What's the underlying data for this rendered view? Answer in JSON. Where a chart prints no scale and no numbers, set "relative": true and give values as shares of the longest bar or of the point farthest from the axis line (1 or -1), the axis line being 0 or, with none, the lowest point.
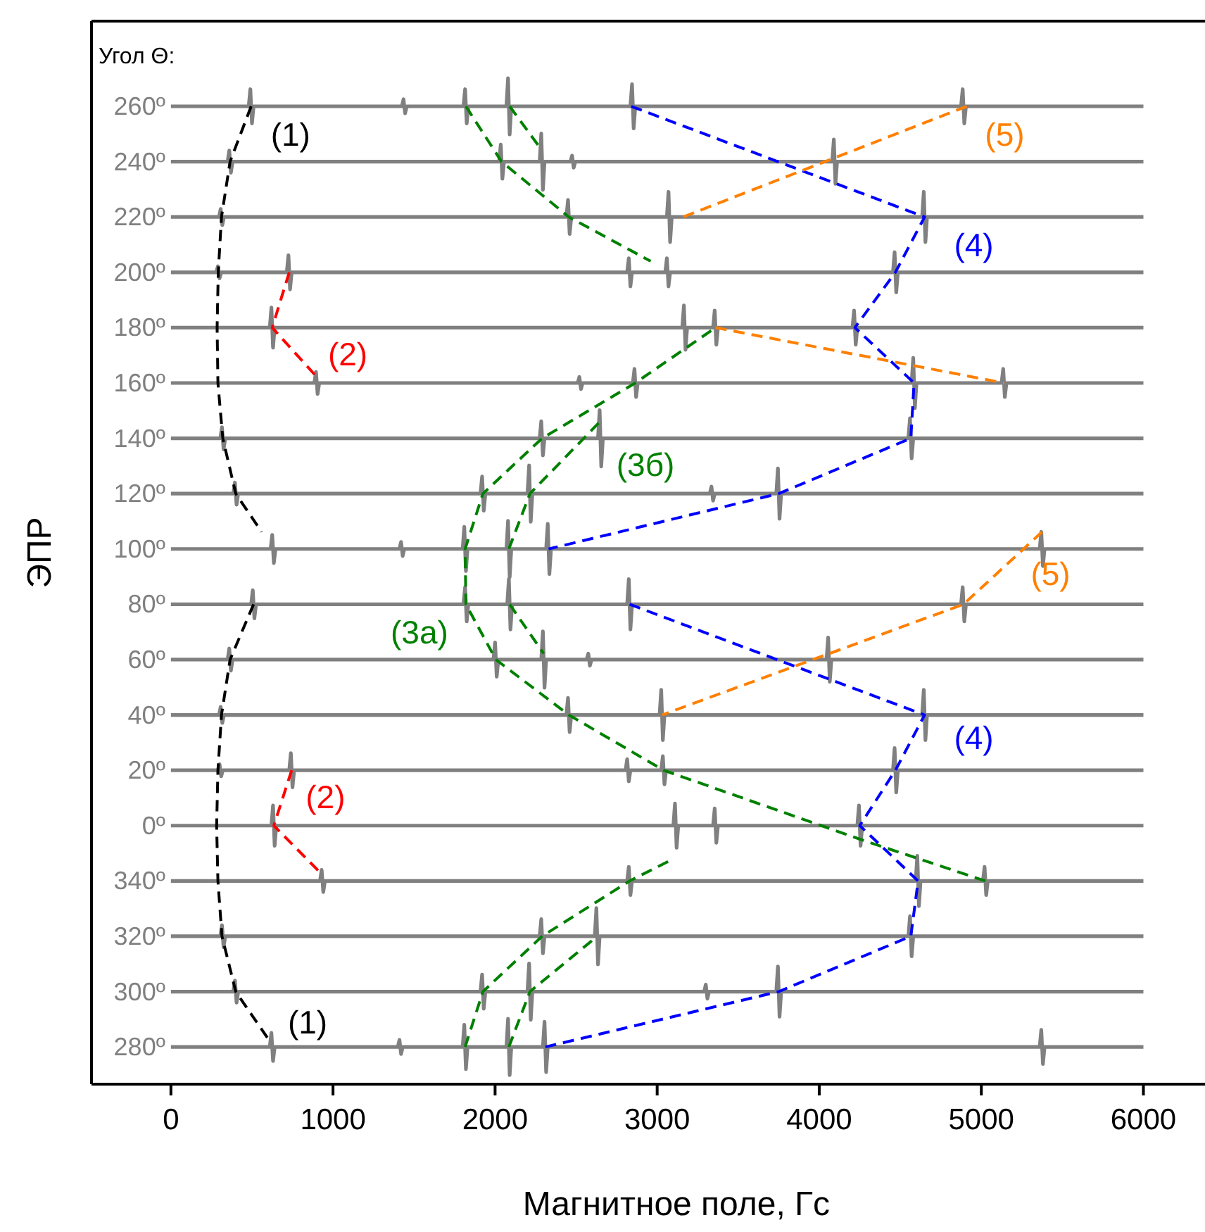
{
  "chart_data": {
    "type": "line",
    "xlabel": "Магнитное поле, Гс",
    "ylabel": "ЭПР",
    "xlim": [
      -490,
      6380
    ],
    "xticks": [
      0,
      1000,
      2000,
      3000,
      4000,
      5000,
      6000
    ],
    "relative": true,
    "line_style": "solid",
    "series": [
      {
        "name": "260º",
        "color": "#808080",
        "x": [
          0,
          480,
          490,
          500,
          510,
          1425,
          1435,
          1445,
          1455,
          1805,
          1815,
          1825,
          1835,
          2070,
          2080,
          2090,
          2100,
          2835,
          2845,
          2855,
          2865,
          4875,
          4885,
          4895,
          4905,
          6000
        ],
        "values": [
          0.972,
          0.972,
          0.989,
          0.955,
          0.972,
          0.972,
          0.979,
          0.965,
          0.972,
          0.972,
          0.989,
          0.955,
          0.972,
          0.972,
          1.0,
          0.944,
          0.972,
          0.972,
          0.994,
          0.95,
          0.972,
          0.972,
          0.989,
          0.955,
          0.972,
          0.972
        ]
      },
      {
        "name": "240º",
        "color": "#808080",
        "x": [
          0,
          350,
          360,
          370,
          380,
          2025,
          2035,
          2045,
          2055,
          2275,
          2285,
          2295,
          2305,
          2465,
          2475,
          2485,
          2495,
          4080,
          4090,
          4100,
          4110,
          6000
        ],
        "values": [
          0.917,
          0.917,
          0.928,
          0.906,
          0.917,
          0.917,
          0.934,
          0.9,
          0.917,
          0.917,
          0.945,
          0.889,
          0.917,
          0.917,
          0.923,
          0.911,
          0.917,
          0.917,
          0.939,
          0.895,
          0.917,
          0.917
        ]
      },
      {
        "name": "220º",
        "color": "#808080",
        "x": [
          0,
          297,
          307,
          317,
          327,
          2440,
          2450,
          2460,
          2470,
          3060,
          3070,
          3080,
          3090,
          4635,
          4645,
          4655,
          4665,
          6000
        ],
        "values": [
          0.862,
          0.862,
          0.87,
          0.854,
          0.862,
          0.862,
          0.879,
          0.845,
          0.862,
          0.862,
          0.887,
          0.837,
          0.862,
          0.862,
          0.887,
          0.837,
          0.862,
          0.862
        ]
      },
      {
        "name": "200º",
        "color": "#808080",
        "x": [
          0,
          280,
          290,
          300,
          310,
          715,
          725,
          735,
          745,
          2815,
          2825,
          2835,
          2845,
          3050,
          3060,
          3070,
          3080,
          4455,
          4465,
          4475,
          4485,
          6000
        ],
        "values": [
          0.807,
          0.807,
          0.813,
          0.801,
          0.807,
          0.807,
          0.824,
          0.79,
          0.807,
          0.807,
          0.821,
          0.793,
          0.807,
          0.807,
          0.821,
          0.793,
          0.807,
          0.807,
          0.827,
          0.787,
          0.807,
          0.807
        ]
      },
      {
        "name": "180º",
        "color": "#808080",
        "x": [
          0,
          610,
          620,
          630,
          640,
          3155,
          3165,
          3175,
          3185,
          3345,
          3355,
          3365,
          3375,
          4205,
          4215,
          4225,
          4235,
          6000
        ],
        "values": [
          0.752,
          0.752,
          0.772,
          0.732,
          0.752,
          0.752,
          0.774,
          0.73,
          0.752,
          0.752,
          0.769,
          0.735,
          0.752,
          0.752,
          0.769,
          0.735,
          0.752,
          0.752
        ]
      },
      {
        "name": "160º",
        "color": "#808080",
        "x": [
          0,
          885,
          895,
          905,
          915,
          2510,
          2520,
          2530,
          2540,
          2850,
          2860,
          2870,
          2880,
          4570,
          4580,
          4590,
          4600,
          5125,
          5135,
          5145,
          5155,
          6000
        ],
        "values": [
          0.697,
          0.697,
          0.708,
          0.686,
          0.697,
          0.697,
          0.703,
          0.691,
          0.697,
          0.697,
          0.711,
          0.683,
          0.697,
          0.697,
          0.722,
          0.672,
          0.697,
          0.697,
          0.711,
          0.683,
          0.697,
          0.697
        ]
      },
      {
        "name": "140º",
        "color": "#808080",
        "x": [
          0,
          305,
          315,
          325,
          335,
          2275,
          2285,
          2295,
          2305,
          2635,
          2645,
          2655,
          2665,
          4550,
          4560,
          4570,
          4580,
          6000
        ],
        "values": [
          0.642,
          0.642,
          0.653,
          0.631,
          0.642,
          0.642,
          0.659,
          0.625,
          0.642,
          0.642,
          0.67,
          0.614,
          0.642,
          0.642,
          0.662,
          0.622,
          0.642,
          0.642
        ]
      },
      {
        "name": "120º",
        "color": "#808080",
        "x": [
          0,
          385,
          395,
          405,
          415,
          1910,
          1920,
          1930,
          1940,
          2200,
          2210,
          2220,
          2230,
          3325,
          3335,
          3345,
          3355,
          3735,
          3745,
          3755,
          3765,
          6000
        ],
        "values": [
          0.587,
          0.587,
          0.598,
          0.576,
          0.587,
          0.587,
          0.604,
          0.57,
          0.587,
          0.587,
          0.615,
          0.559,
          0.587,
          0.587,
          0.594,
          0.58,
          0.587,
          0.587,
          0.612,
          0.562,
          0.587,
          0.587
        ]
      },
      {
        "name": "100º",
        "color": "#808080",
        "x": [
          0,
          615,
          625,
          635,
          645,
          1410,
          1420,
          1430,
          1440,
          1800,
          1810,
          1820,
          1830,
          2070,
          2080,
          2090,
          2100,
          2315,
          2325,
          2335,
          2345,
          5360,
          5370,
          5380,
          5390,
          6000
        ],
        "values": [
          0.532,
          0.532,
          0.546,
          0.518,
          0.532,
          0.532,
          0.539,
          0.525,
          0.532,
          0.532,
          0.554,
          0.51,
          0.532,
          0.532,
          0.56,
          0.504,
          0.532,
          0.532,
          0.557,
          0.507,
          0.532,
          0.532,
          0.549,
          0.515,
          0.532,
          0.532
        ]
      },
      {
        "name": "80º",
        "color": "#808080",
        "x": [
          0,
          495,
          505,
          515,
          525,
          1805,
          1815,
          1825,
          1835,
          2075,
          2085,
          2095,
          2105,
          2815,
          2825,
          2835,
          2845,
          4875,
          4885,
          4895,
          4905,
          6000
        ],
        "values": [
          0.477,
          0.477,
          0.491,
          0.463,
          0.477,
          0.477,
          0.494,
          0.46,
          0.477,
          0.477,
          0.502,
          0.452,
          0.477,
          0.477,
          0.502,
          0.452,
          0.477,
          0.477,
          0.494,
          0.46,
          0.477,
          0.477
        ]
      },
      {
        "name": "60º",
        "color": "#808080",
        "x": [
          0,
          350,
          360,
          370,
          380,
          1990,
          2000,
          2010,
          2020,
          2285,
          2295,
          2305,
          2315,
          2565,
          2575,
          2585,
          2595,
          4045,
          4055,
          4065,
          4075,
          6000
        ],
        "values": [
          0.422,
          0.422,
          0.433,
          0.411,
          0.422,
          0.422,
          0.439,
          0.405,
          0.422,
          0.422,
          0.45,
          0.394,
          0.422,
          0.422,
          0.428,
          0.416,
          0.422,
          0.422,
          0.444,
          0.4,
          0.422,
          0.422
        ]
      },
      {
        "name": "40º",
        "color": "#808080",
        "x": [
          0,
          297,
          307,
          317,
          327,
          2440,
          2450,
          2460,
          2470,
          3015,
          3025,
          3035,
          3045,
          4635,
          4645,
          4655,
          4665,
          6000
        ],
        "values": [
          0.367,
          0.367,
          0.375,
          0.359,
          0.367,
          0.367,
          0.384,
          0.35,
          0.367,
          0.367,
          0.392,
          0.342,
          0.367,
          0.367,
          0.392,
          0.342,
          0.367,
          0.367
        ]
      },
      {
        "name": "20º",
        "color": "#808080",
        "x": [
          0,
          290,
          300,
          310,
          320,
          730,
          740,
          750,
          760,
          2805,
          2815,
          2825,
          2835,
          3025,
          3035,
          3045,
          3055,
          4455,
          4465,
          4475,
          4485,
          6000
        ],
        "values": [
          0.312,
          0.312,
          0.318,
          0.306,
          0.312,
          0.312,
          0.329,
          0.295,
          0.312,
          0.312,
          0.323,
          0.301,
          0.312,
          0.312,
          0.326,
          0.298,
          0.312,
          0.312,
          0.334,
          0.29,
          0.312,
          0.312
        ]
      },
      {
        "name": "0º",
        "color": "#808080",
        "x": [
          0,
          620,
          630,
          640,
          650,
          3100,
          3110,
          3120,
          3130,
          3345,
          3355,
          3365,
          3375,
          4235,
          4245,
          4255,
          4265,
          6000
        ],
        "values": [
          0.257,
          0.257,
          0.277,
          0.237,
          0.257,
          0.257,
          0.279,
          0.235,
          0.257,
          0.257,
          0.274,
          0.24,
          0.257,
          0.257,
          0.277,
          0.237,
          0.257,
          0.257
        ]
      },
      {
        "name": "340º",
        "color": "#808080",
        "x": [
          0,
          920,
          930,
          940,
          950,
          2815,
          2825,
          2835,
          2845,
          4595,
          4605,
          4615,
          4625,
          5010,
          5020,
          5030,
          5040,
          6000
        ],
        "values": [
          0.202,
          0.202,
          0.213,
          0.191,
          0.202,
          0.202,
          0.216,
          0.188,
          0.202,
          0.202,
          0.227,
          0.177,
          0.202,
          0.202,
          0.216,
          0.188,
          0.202,
          0.202
        ]
      },
      {
        "name": "320º",
        "color": "#808080",
        "x": [
          0,
          305,
          315,
          325,
          335,
          2275,
          2285,
          2295,
          2305,
          2615,
          2625,
          2635,
          2645,
          4550,
          4560,
          4570,
          4580,
          6000
        ],
        "values": [
          0.147,
          0.147,
          0.158,
          0.136,
          0.147,
          0.147,
          0.164,
          0.13,
          0.147,
          0.147,
          0.175,
          0.119,
          0.147,
          0.147,
          0.167,
          0.127,
          0.147,
          0.147
        ]
      },
      {
        "name": "300º",
        "color": "#808080",
        "x": [
          0,
          385,
          395,
          405,
          415,
          1910,
          1920,
          1930,
          1940,
          2200,
          2210,
          2220,
          2230,
          3290,
          3300,
          3310,
          3320,
          3735,
          3745,
          3755,
          3765,
          6000
        ],
        "values": [
          0.092,
          0.092,
          0.103,
          0.081,
          0.092,
          0.092,
          0.109,
          0.075,
          0.092,
          0.092,
          0.12,
          0.064,
          0.092,
          0.092,
          0.099,
          0.085,
          0.092,
          0.092,
          0.117,
          0.067,
          0.092,
          0.092
        ]
      },
      {
        "name": "280º",
        "color": "#808080",
        "x": [
          0,
          610,
          620,
          630,
          640,
          1400,
          1410,
          1420,
          1430,
          1800,
          1810,
          1820,
          1830,
          2070,
          2080,
          2090,
          2100,
          2295,
          2305,
          2315,
          2325,
          5360,
          5370,
          5380,
          5390,
          6000
        ],
        "values": [
          0.037,
          0.037,
          0.051,
          0.023,
          0.037,
          0.037,
          0.044,
          0.03,
          0.037,
          0.037,
          0.059,
          0.015,
          0.037,
          0.037,
          0.065,
          0.009,
          0.037,
          0.037,
          0.062,
          0.012,
          0.037,
          0.037,
          0.054,
          0.02,
          0.037,
          0.037
        ]
      },
      {
        "name": "(1)",
        "color": "#000000",
        "line_style": "dashed",
        "x": [
          495,
          365,
          312,
          292,
          285,
          290,
          320,
          400,
          560
        ],
        "values": [
          0.972,
          0.917,
          0.862,
          0.807,
          0.752,
          0.697,
          0.642,
          0.587,
          0.549
        ]
      },
      {
        "name": "(1)",
        "color": "#000000",
        "line_style": "dashed",
        "x": [
          510,
          365,
          312,
          290,
          282,
          290,
          315,
          400,
          600
        ],
        "values": [
          0.477,
          0.422,
          0.367,
          0.312,
          0.257,
          0.202,
          0.147,
          0.092,
          0.045
        ]
      },
      {
        "name": "(2)",
        "color": "#ff0000",
        "line_style": "dashed",
        "x": [
          730,
          625,
          900
        ],
        "values": [
          0.807,
          0.752,
          0.703
        ]
      },
      {
        "name": "(2)",
        "color": "#ff0000",
        "line_style": "dashed",
        "x": [
          745,
          635,
          935
        ],
        "values": [
          0.312,
          0.257,
          0.208
        ]
      },
      {
        "color": "#008000",
        "line_style": "dashed",
        "x": [
          1820,
          2040,
          2455,
          2960
        ],
        "values": [
          0.972,
          0.917,
          0.862,
          0.818
        ]
      },
      {
        "color": "#008000",
        "line_style": "dashed",
        "x": [
          2090,
          2290
        ],
        "values": [
          0.972,
          0.928
        ]
      },
      {
        "name": "(3а)",
        "color": "#008000",
        "line_style": "dashed",
        "x": [
          5025,
          4260,
          3040,
          2455,
          2005,
          1820,
          1815,
          1925,
          2290,
          2865,
          3360
        ],
        "values": [
          0.202,
          0.243,
          0.312,
          0.367,
          0.422,
          0.477,
          0.532,
          0.587,
          0.642,
          0.697,
          0.752
        ]
      },
      {
        "name": "(3б)",
        "color": "#008000",
        "line_style": "dashed",
        "x": [
          2085,
          2215,
          2650
        ],
        "values": [
          0.532,
          0.587,
          0.659
        ]
      },
      {
        "color": "#008000",
        "line_style": "dashed",
        "x": [
          2090,
          2300
        ],
        "values": [
          0.477,
          0.428
        ]
      },
      {
        "color": "#008000",
        "line_style": "dashed",
        "x": [
          1815,
          1925,
          2290,
          2830,
          3100
        ],
        "values": [
          0.037,
          0.092,
          0.147,
          0.202,
          0.224
        ]
      },
      {
        "color": "#008000",
        "line_style": "dashed",
        "x": [
          2085,
          2215,
          2630
        ],
        "values": [
          0.037,
          0.092,
          0.147
        ]
      },
      {
        "name": "(4)",
        "color": "#0000ff",
        "line_style": "dashed",
        "x": [
          2840,
          4650,
          4470,
          4220,
          4585,
          4565,
          3750,
          2330
        ],
        "values": [
          0.972,
          0.862,
          0.807,
          0.752,
          0.697,
          0.642,
          0.587,
          0.532
        ]
      },
      {
        "name": "(4)",
        "color": "#0000ff",
        "line_style": "dashed",
        "x": [
          2830,
          4650,
          4470,
          4250,
          4610,
          4565,
          3750,
          2310
        ],
        "values": [
          0.477,
          0.367,
          0.312,
          0.257,
          0.202,
          0.147,
          0.092,
          0.037
        ]
      },
      {
        "name": "(5)",
        "color": "#ff8000",
        "line_style": "dashed",
        "x": [
          4910,
          3160
        ],
        "values": [
          0.972,
          0.862
        ]
      },
      {
        "color": "#ff8000",
        "line_style": "dashed",
        "x": [
          3360,
          5140
        ],
        "values": [
          0.752,
          0.697
        ]
      },
      {
        "name": "(5)",
        "color": "#ff8000",
        "line_style": "dashed",
        "x": [
          5375,
          4890,
          3030
        ],
        "values": [
          0.549,
          0.477,
          0.367
        ]
      }
    ],
    "annotations": [
      "Угол Θ:"
    ]
  }
}
